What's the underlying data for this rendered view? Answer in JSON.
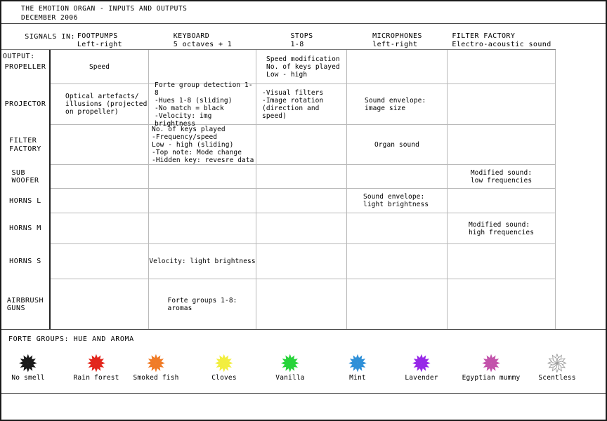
{
  "title": "THE EMOTION ORGAN - INPUTS AND OUTPUTS",
  "subtitle": "DECEMBER 2006",
  "signals_in_label": "SIGNALS IN:",
  "output_label": "OUTPUT:",
  "columns": [
    {
      "name": "FOOTPUMPS",
      "sub": "Left-right"
    },
    {
      "name": "KEYBOARD",
      "sub": "5 octaves + 1"
    },
    {
      "name": "STOPS",
      "sub": "1-8"
    },
    {
      "name": "MICROPHONES",
      "sub": "left-right"
    },
    {
      "name": "FILTER FACTORY",
      "sub": "Electro-acoustic sound"
    }
  ],
  "rows": [
    {
      "label": "PROPELLER",
      "cells": [
        "Speed",
        "",
        "Speed modification\nNo. of keys played\nLow - high",
        "",
        ""
      ]
    },
    {
      "label": "PROJECTOR",
      "cells": [
        "Optical artefacts/\nillusions (projected\non propeller)",
        "Forte group detection 1-8\n-Hues 1-8 (sliding)\n-No match = black\n-Velocity: img brightness",
        "-Visual filters\n-Image rotation\n(direction and speed)",
        "Sound envelope:\nimage size",
        ""
      ]
    },
    {
      "label": "FILTER\nFACTORY",
      "cells": [
        "",
        "No. of keys played\n-Frequency/speed\nLow - high (sliding)\n-Top note: Mode change\n-Hidden key: revesre data",
        "",
        "Organ sound",
        ""
      ]
    },
    {
      "label": "SUB\nWOOFER",
      "cells": [
        "",
        "",
        "",
        "",
        "Modified sound:\nlow frequencies"
      ]
    },
    {
      "label": "HORNS L",
      "cells": [
        "",
        "",
        "",
        "Sound envelope:\nlight brightness",
        ""
      ]
    },
    {
      "label": "HORNS M",
      "cells": [
        "",
        "",
        "",
        "",
        "Modified sound:\nhigh frequencies"
      ]
    },
    {
      "label": "HORNS S",
      "cells": [
        "",
        "Velocity: light brightness",
        "",
        "",
        ""
      ]
    },
    {
      "label": "AIRBRUSH\nGUNS",
      "cells": [
        "",
        "Forte groups 1-8:\naromas",
        "",
        "",
        ""
      ]
    }
  ],
  "legend": {
    "title": "FORTE GROUPS: HUE AND AROMA",
    "items": [
      {
        "label": "No smell",
        "color": "#1a1a1a",
        "style": "solid"
      },
      {
        "label": "Rain forest",
        "color": "#e2261c",
        "style": "solid"
      },
      {
        "label": "Smoked fish",
        "color": "#f07c28",
        "style": "solid"
      },
      {
        "label": "Cloves",
        "color": "#f2ee3f",
        "style": "solid"
      },
      {
        "label": "Vanilla",
        "color": "#27d43a",
        "style": "solid"
      },
      {
        "label": "Mint",
        "color": "#2f90d8",
        "style": "solid"
      },
      {
        "label": "Lavender",
        "color": "#9728e8",
        "style": "solid"
      },
      {
        "label": "Egyptian mummy",
        "color": "#c353ab",
        "style": "solid"
      },
      {
        "label": "Scentless",
        "color": "#9a9a9a",
        "style": "outline"
      }
    ]
  }
}
